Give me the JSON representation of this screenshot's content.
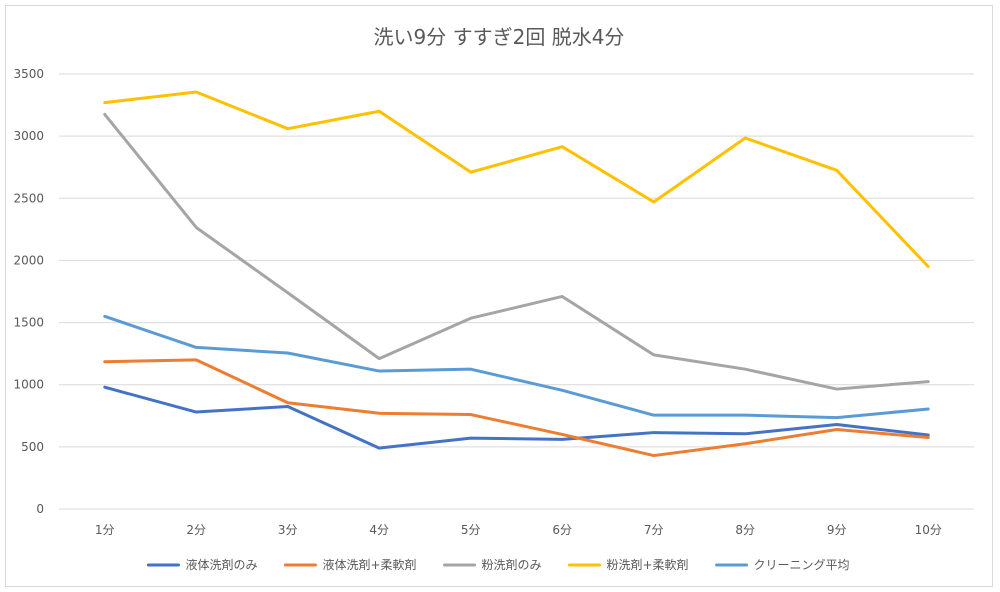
{
  "chart_data": {
    "type": "line",
    "title": "洗い9分 すすぎ2回 脱水4分",
    "xlabel": "",
    "ylabel": "",
    "categories": [
      "1分",
      "2分",
      "3分",
      "4分",
      "5分",
      "6分",
      "7分",
      "8分",
      "9分",
      "10分"
    ],
    "ylim": [
      0,
      3500
    ],
    "yticks": [
      0,
      500,
      1000,
      1500,
      2000,
      2500,
      3000,
      3500
    ],
    "grid": true,
    "legend_position": "bottom",
    "series": [
      {
        "name": "液体洗剤のみ",
        "color": "#4472c4",
        "values": [
          980,
          780,
          825,
          490,
          570,
          560,
          615,
          605,
          680,
          595
        ]
      },
      {
        "name": "液体洗剤+柔軟剤",
        "color": "#ed7d31",
        "values": [
          1185,
          1200,
          855,
          770,
          760,
          600,
          430,
          525,
          640,
          575
        ]
      },
      {
        "name": "粉洗剤のみ",
        "color": "#a5a5a5",
        "values": [
          3175,
          2265,
          1740,
          1210,
          1535,
          1710,
          1240,
          1125,
          965,
          1025
        ]
      },
      {
        "name": "粉洗剤+柔軟剤",
        "color": "#ffc000",
        "values": [
          3270,
          3355,
          3060,
          3200,
          2710,
          2915,
          2470,
          2985,
          2725,
          1950
        ]
      },
      {
        "name": "クリーニング平均",
        "color": "#5b9bd5",
        "values": [
          1550,
          1300,
          1255,
          1110,
          1125,
          955,
          755,
          755,
          735,
          805
        ]
      }
    ]
  }
}
